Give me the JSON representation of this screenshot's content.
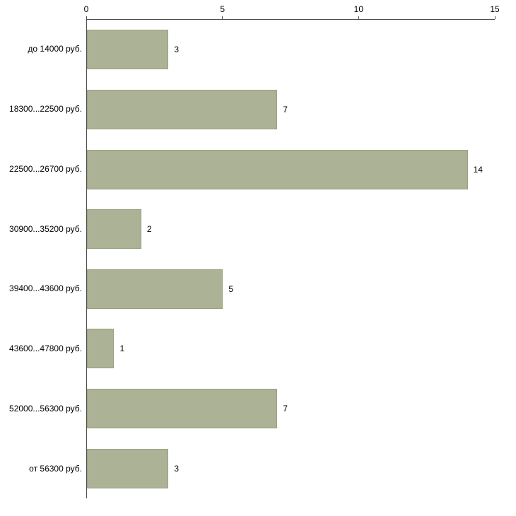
{
  "chart_data": {
    "type": "bar",
    "orientation": "horizontal",
    "title": "",
    "xlabel": "",
    "ylabel": "",
    "categories": [
      "до 14000 руб.",
      "18300...22500 руб.",
      "22500...26700 руб.",
      "30900...35200 руб.",
      "39400...43600 руб.",
      "43600...47800 руб.",
      "52000...56300 руб.",
      "от 56300 руб."
    ],
    "values": [
      3,
      7,
      14,
      2,
      5,
      1,
      7,
      3
    ],
    "xlim": [
      0,
      15
    ],
    "xticks": [
      0,
      5,
      10,
      15
    ],
    "grid": false,
    "legend": null,
    "bar_color": "#abb295",
    "bar_border_color": "#99a07e",
    "axis_color": "#4d4d4d",
    "background_color": "#ffffff"
  }
}
